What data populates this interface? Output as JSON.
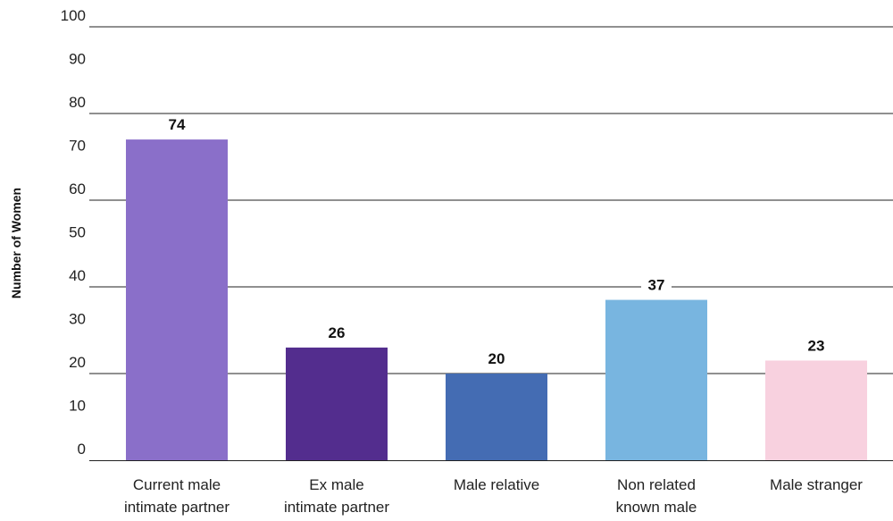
{
  "chart_data": {
    "type": "bar",
    "title": "",
    "xlabel": "",
    "ylabel": "Number of Women",
    "ylim": [
      0,
      100
    ],
    "yticks": [
      "0",
      "10",
      "20",
      "30",
      "40",
      "50",
      "60",
      "70",
      "80",
      "90",
      "100"
    ],
    "gridlines_at": [
      20,
      40,
      60,
      80,
      100
    ],
    "grid": true,
    "legend": "none",
    "categories": [
      [
        "Current male",
        "intimate partner"
      ],
      [
        "Ex male",
        "intimate partner"
      ],
      [
        "Male relative"
      ],
      [
        "Non related",
        "known male"
      ],
      [
        "Male stranger"
      ]
    ],
    "values": [
      74,
      26,
      20,
      37,
      23
    ],
    "data_labels": [
      "74",
      "26",
      "20",
      "37",
      "23"
    ],
    "colors": [
      "#8a6fc9",
      "#532d8e",
      "#446cb3",
      "#78b5e0",
      "#f8d1df"
    ]
  }
}
